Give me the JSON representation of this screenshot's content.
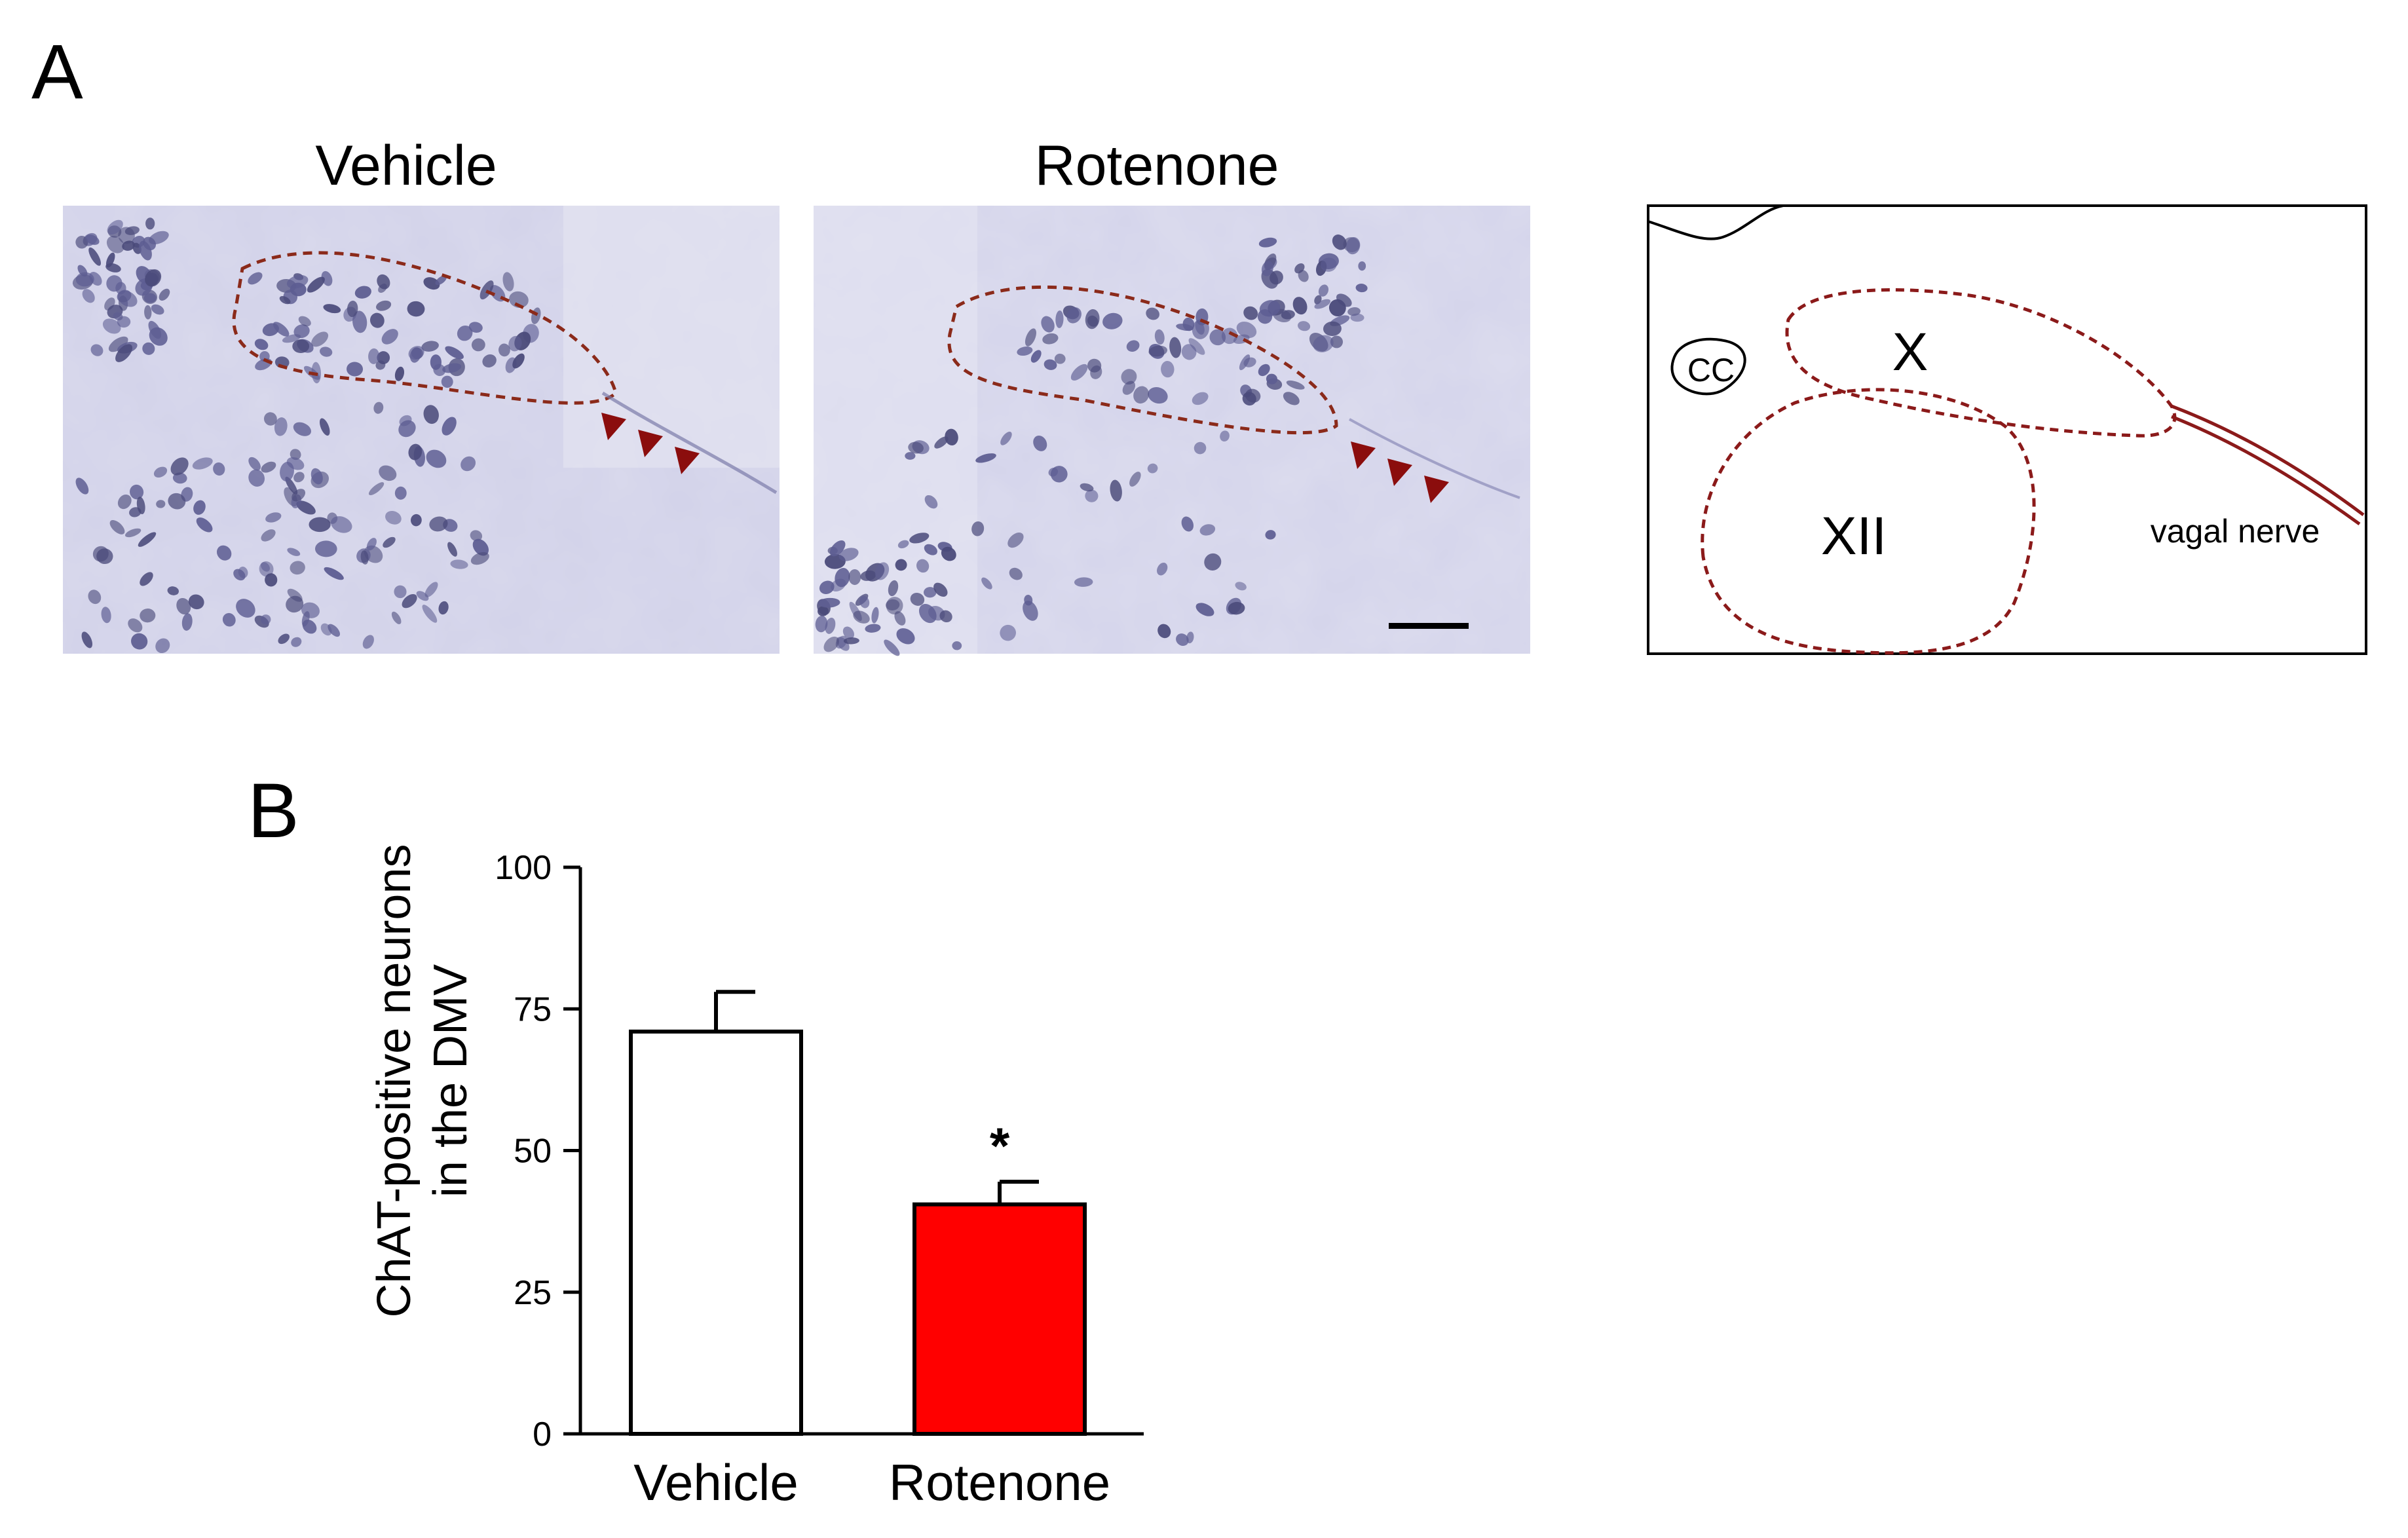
{
  "panel_a": {
    "letter": "A",
    "images": [
      {
        "title": "Vehicle"
      },
      {
        "title": "Rotenone"
      }
    ],
    "diagram": {
      "cc_label": "CC",
      "x_label": "X",
      "xii_label": "XII",
      "nerve_label": "vagal nerve"
    }
  },
  "panel_b": {
    "letter": "B"
  },
  "colors": {
    "vehicle_bar": "#ffffff",
    "rotenone_bar": "#ff0000",
    "outline_dashed": "#8b1a1a",
    "stain_background": "#d8d8ec"
  },
  "chart_data": {
    "type": "bar",
    "categories": [
      "Vehicle",
      "Rotenone"
    ],
    "values": [
      71,
      40.5
    ],
    "errors": [
      7,
      4
    ],
    "ylabel_line1": "ChAT-positive neurons",
    "ylabel_line2": "in the DMV",
    "ylim": [
      0,
      100
    ],
    "yticks": [
      "0",
      "25",
      "50",
      "75",
      "100"
    ],
    "annotations": [
      {
        "category": "Rotenone",
        "text": "*"
      }
    ]
  }
}
